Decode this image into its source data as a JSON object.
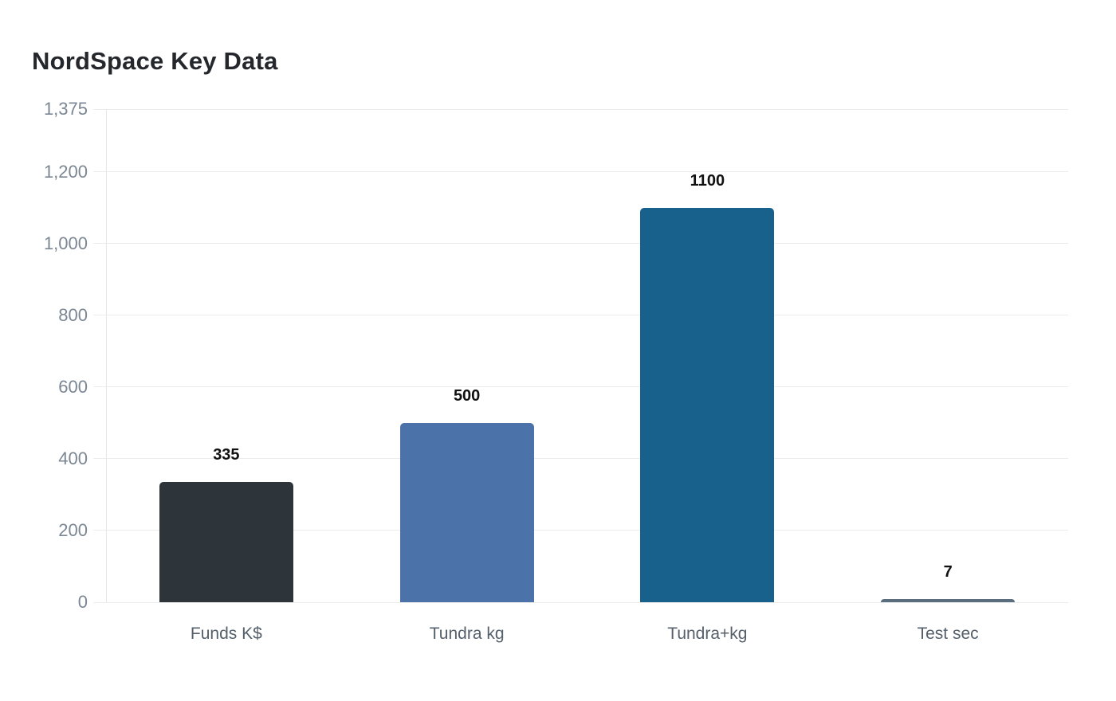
{
  "page": {
    "background": "#ffffff"
  },
  "chart_data": {
    "type": "bar",
    "title": "NordSpace Key Data",
    "categories": [
      "Funds K$",
      "Tundra kg",
      "Tundra+kg",
      "Test sec"
    ],
    "values": [
      335,
      500,
      1100,
      7
    ],
    "value_labels": [
      "335",
      "500",
      "1100",
      "7"
    ],
    "bar_colors": [
      "#2d343a",
      "#4b72a9",
      "#17618c",
      "#5a6e7d"
    ],
    "xlabel": "",
    "ylabel": "",
    "ylim": [
      0,
      1375
    ],
    "yticks": [
      {
        "value": 0,
        "label": "0"
      },
      {
        "value": 200,
        "label": "200"
      },
      {
        "value": 400,
        "label": "400"
      },
      {
        "value": 600,
        "label": "600"
      },
      {
        "value": 800,
        "label": "800"
      },
      {
        "value": 1000,
        "label": "1,000"
      },
      {
        "value": 1200,
        "label": "1,200"
      },
      {
        "value": 1375,
        "label": "1,375"
      }
    ],
    "grid": true,
    "legend": false
  },
  "style": {
    "grid_color": "#ebecee",
    "axis_line_color": "#e4e6e9",
    "ytick_color": "#7b8794",
    "category_label_color": "#55606b",
    "title_color": "#24282c",
    "value_label_color": "#111111"
  }
}
